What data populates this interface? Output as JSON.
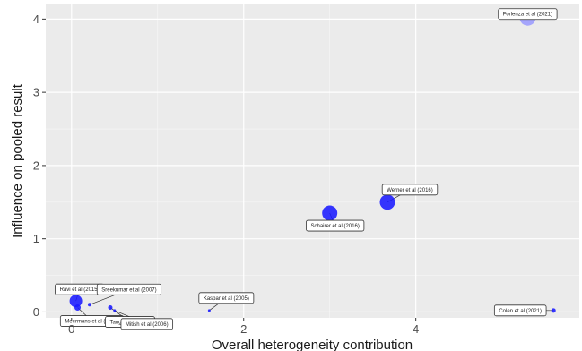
{
  "chart_data": {
    "type": "scatter",
    "title": "",
    "xlabel": "Overall heterogeneity contribution",
    "ylabel": "Influence on pooled result",
    "xlim": [
      -0.3,
      5.9
    ],
    "ylim": [
      -0.08,
      4.2
    ],
    "x_ticks": [
      0,
      2,
      4
    ],
    "y_ticks": [
      0,
      1,
      2,
      3,
      4
    ],
    "grid": true,
    "colors": {
      "panel": "#ebebeb",
      "grid_major": "#ffffff",
      "point": "#1a1aff",
      "point_light": "#9999ff"
    },
    "points": [
      {
        "label": "Forlenza et al (2021)",
        "x": 5.3,
        "y": 4.02,
        "size": 18,
        "light": true
      },
      {
        "label": "Werner et al (2016)",
        "x": 3.67,
        "y": 1.5,
        "size": 17,
        "light": false
      },
      {
        "label": "Schairer et al (2016)",
        "x": 3.0,
        "y": 1.35,
        "size": 17,
        "light": false
      },
      {
        "label": "Ravi et al (2015)",
        "x": 0.05,
        "y": 0.15,
        "size": 14,
        "light": false
      },
      {
        "label": "Sreekumar et al (2007)",
        "x": 0.21,
        "y": 0.1,
        "size": 4,
        "light": false
      },
      {
        "label": "Meermans et al (2012)",
        "x": 0.07,
        "y": 0.06,
        "size": 7,
        "light": false
      },
      {
        "label": "Tang et al (2021)",
        "x": 0.45,
        "y": 0.06,
        "size": 5,
        "light": false
      },
      {
        "label": "Mitish et al (2006)",
        "x": 0.5,
        "y": 0.02,
        "size": 3,
        "light": false
      },
      {
        "label": "Kaspar et al (2005)",
        "x": 1.6,
        "y": 0.02,
        "size": 3,
        "light": false
      },
      {
        "label": "Colen et al (2021)",
        "x": 5.6,
        "y": 0.02,
        "size": 5,
        "light": false
      }
    ]
  }
}
